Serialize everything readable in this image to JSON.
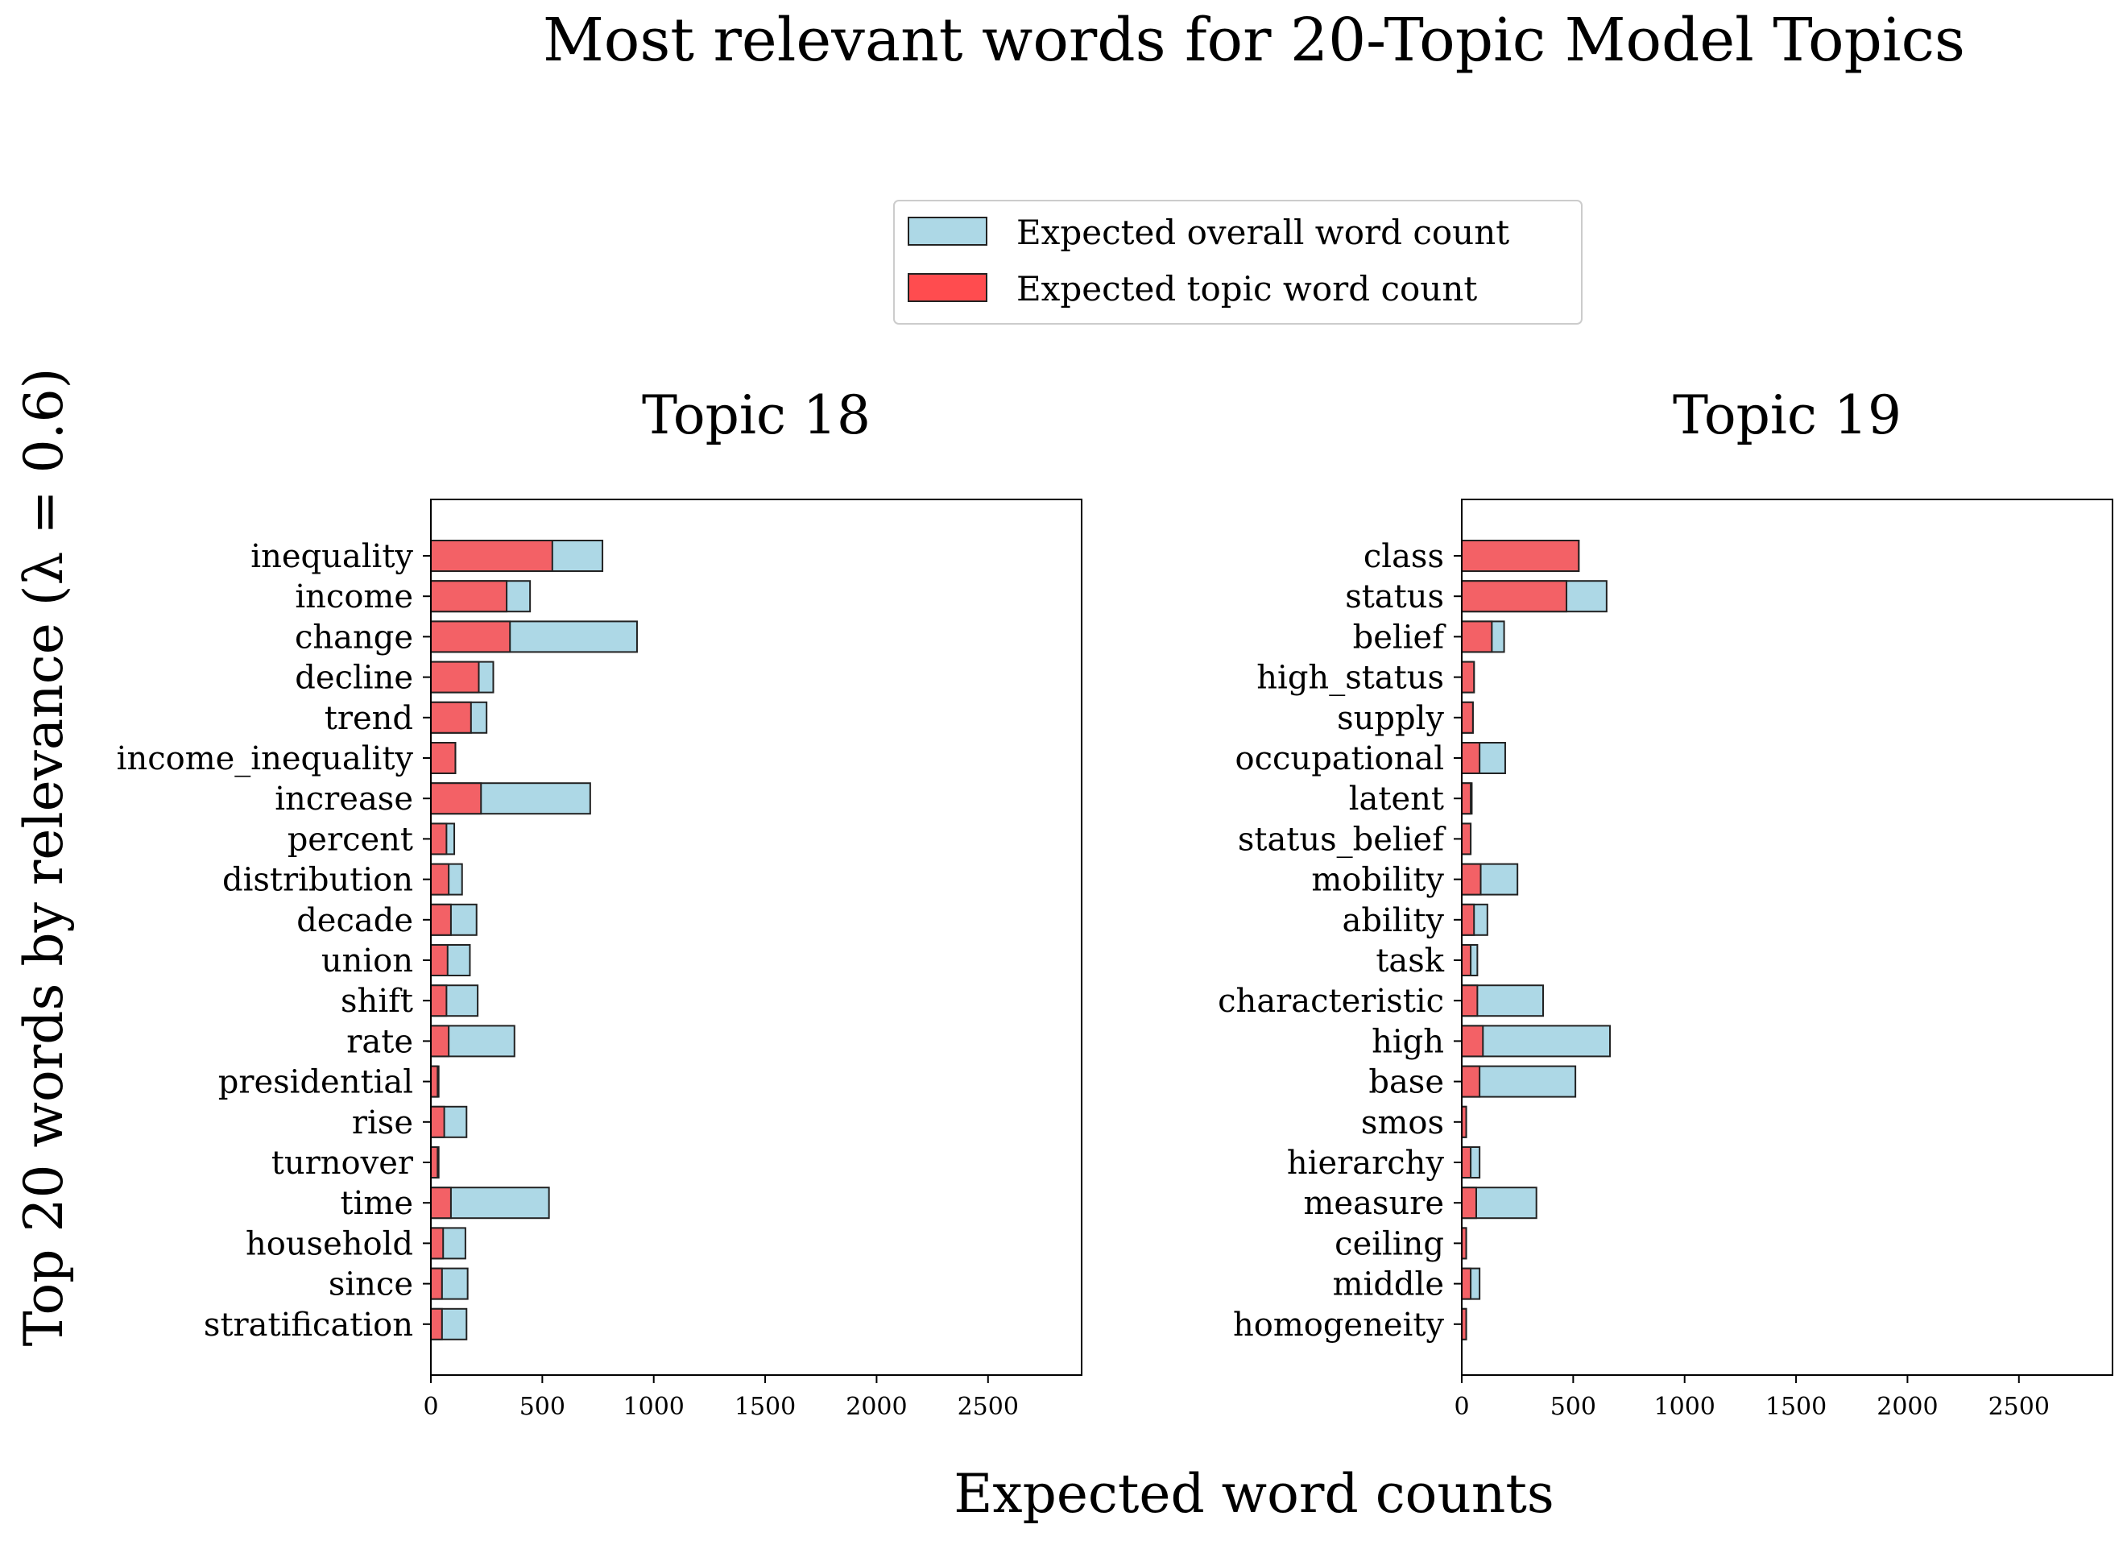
{
  "chart_data": {
    "type": "bar",
    "orientation": "horizontal",
    "title": "Most relevant words for 20-Topic Model Topics",
    "xlabel": "Expected word counts",
    "ylabel": "Top 20 words by relevance (λ = 0.6)",
    "xlim": [
      0,
      2920
    ],
    "xticks": [
      0,
      500,
      1000,
      1500,
      2000,
      2500
    ],
    "grid": false,
    "legend": {
      "placement": "top-center",
      "entries": [
        {
          "label": "Expected overall word count",
          "color": "#add8e6"
        },
        {
          "label": "Expected topic word count",
          "color": "#ff4c4f"
        }
      ]
    },
    "panels": [
      {
        "title": "Topic 18",
        "categories": [
          "inequality",
          "income",
          "change",
          "decline",
          "trend",
          "income_inequality",
          "increase",
          "percent",
          "distribution",
          "decade",
          "union",
          "shift",
          "rate",
          "presidential",
          "rise",
          "turnover",
          "time",
          "household",
          "since",
          "stratification"
        ],
        "series": [
          {
            "name": "Expected overall word count",
            "values": [
              770,
              445,
              925,
              280,
              250,
              110,
              715,
              105,
              140,
              205,
              175,
              210,
              375,
              35,
              160,
              35,
              530,
              155,
              165,
              160
            ]
          },
          {
            "name": "Expected topic word count",
            "values": [
              545,
              340,
              355,
              215,
              180,
              110,
              225,
              70,
              80,
              90,
              75,
              70,
              80,
              30,
              60,
              30,
              90,
              55,
              50,
              50
            ]
          }
        ]
      },
      {
        "title": "Topic 19",
        "categories": [
          "class",
          "status",
          "belief",
          "high_status",
          "supply",
          "occupational",
          "latent",
          "status_belief",
          "mobility",
          "ability",
          "task",
          "characteristic",
          "high",
          "base",
          "smos",
          "hierarchy",
          "measure",
          "ceiling",
          "middle",
          "homogeneity"
        ],
        "series": [
          {
            "name": "Expected overall word count",
            "values": [
              525,
              650,
              190,
              55,
              50,
              195,
              45,
              40,
              250,
              115,
              70,
              365,
              665,
              510,
              20,
              80,
              335,
              20,
              80,
              20
            ]
          },
          {
            "name": "Expected topic word count",
            "values": [
              525,
              470,
              135,
              55,
              50,
              80,
              40,
              40,
              85,
              55,
              40,
              70,
              95,
              80,
              20,
              40,
              65,
              20,
              40,
              20
            ]
          }
        ]
      }
    ]
  }
}
